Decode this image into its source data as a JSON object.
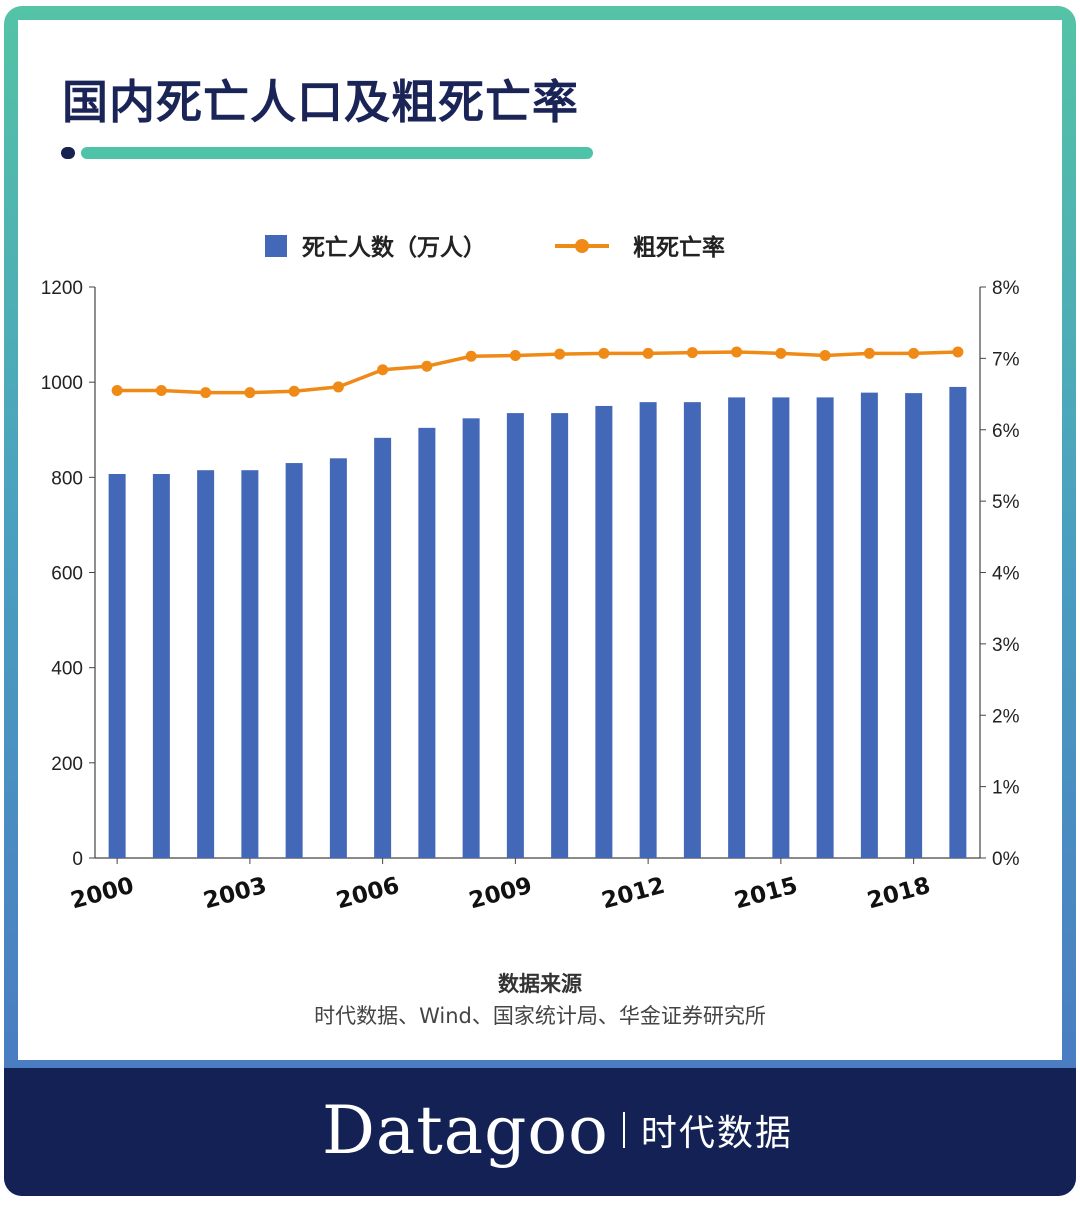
{
  "page": {
    "title": "国内死亡人口及粗死亡率",
    "source_title": "数据来源",
    "source_text": "时代数据、Wind、国家统计局、华金证券研究所",
    "brand_name": "Datagoo",
    "brand_cn": "时代数据"
  },
  "colors": {
    "bar": "#4468b8",
    "line": "#ef8a17",
    "axis": "#444444",
    "title": "#1a2457",
    "footer": "#142155",
    "accent": "#4ec3a7"
  },
  "chart_data": {
    "type": "bar",
    "legend": [
      "死亡人数（万人）",
      "粗死亡率"
    ],
    "x": [
      2000,
      2001,
      2002,
      2003,
      2004,
      2005,
      2006,
      2007,
      2008,
      2009,
      2010,
      2011,
      2012,
      2013,
      2014,
      2015,
      2016,
      2017,
      2018,
      2019
    ],
    "x_tick_labels": [
      "2000",
      "2003",
      "2006",
      "2009",
      "2012",
      "2015",
      "2018"
    ],
    "series": [
      {
        "name": "死亡人数（万人）",
        "type": "bar",
        "axis": "left",
        "values": [
          807,
          807,
          815,
          815,
          830,
          840,
          883,
          904,
          924,
          935,
          935,
          950,
          958,
          958,
          968,
          968,
          968,
          978,
          977,
          990
        ]
      },
      {
        "name": "粗死亡率",
        "type": "line",
        "axis": "right",
        "values": [
          6.55,
          6.55,
          6.52,
          6.52,
          6.54,
          6.6,
          6.84,
          6.89,
          7.03,
          7.04,
          7.06,
          7.07,
          7.07,
          7.08,
          7.09,
          7.07,
          7.04,
          7.07,
          7.07,
          7.09
        ]
      }
    ],
    "y_left": {
      "min": 0,
      "max": 1200,
      "ticks": [
        "0",
        "200",
        "400",
        "600",
        "800",
        "1000",
        "1200"
      ]
    },
    "y_right": {
      "min": 0,
      "max": 8,
      "ticks": [
        "0%",
        "1%",
        "2%",
        "3%",
        "4%",
        "5%",
        "6%",
        "7%",
        "8%"
      ]
    },
    "grid": false,
    "legend_position": "top-center"
  }
}
